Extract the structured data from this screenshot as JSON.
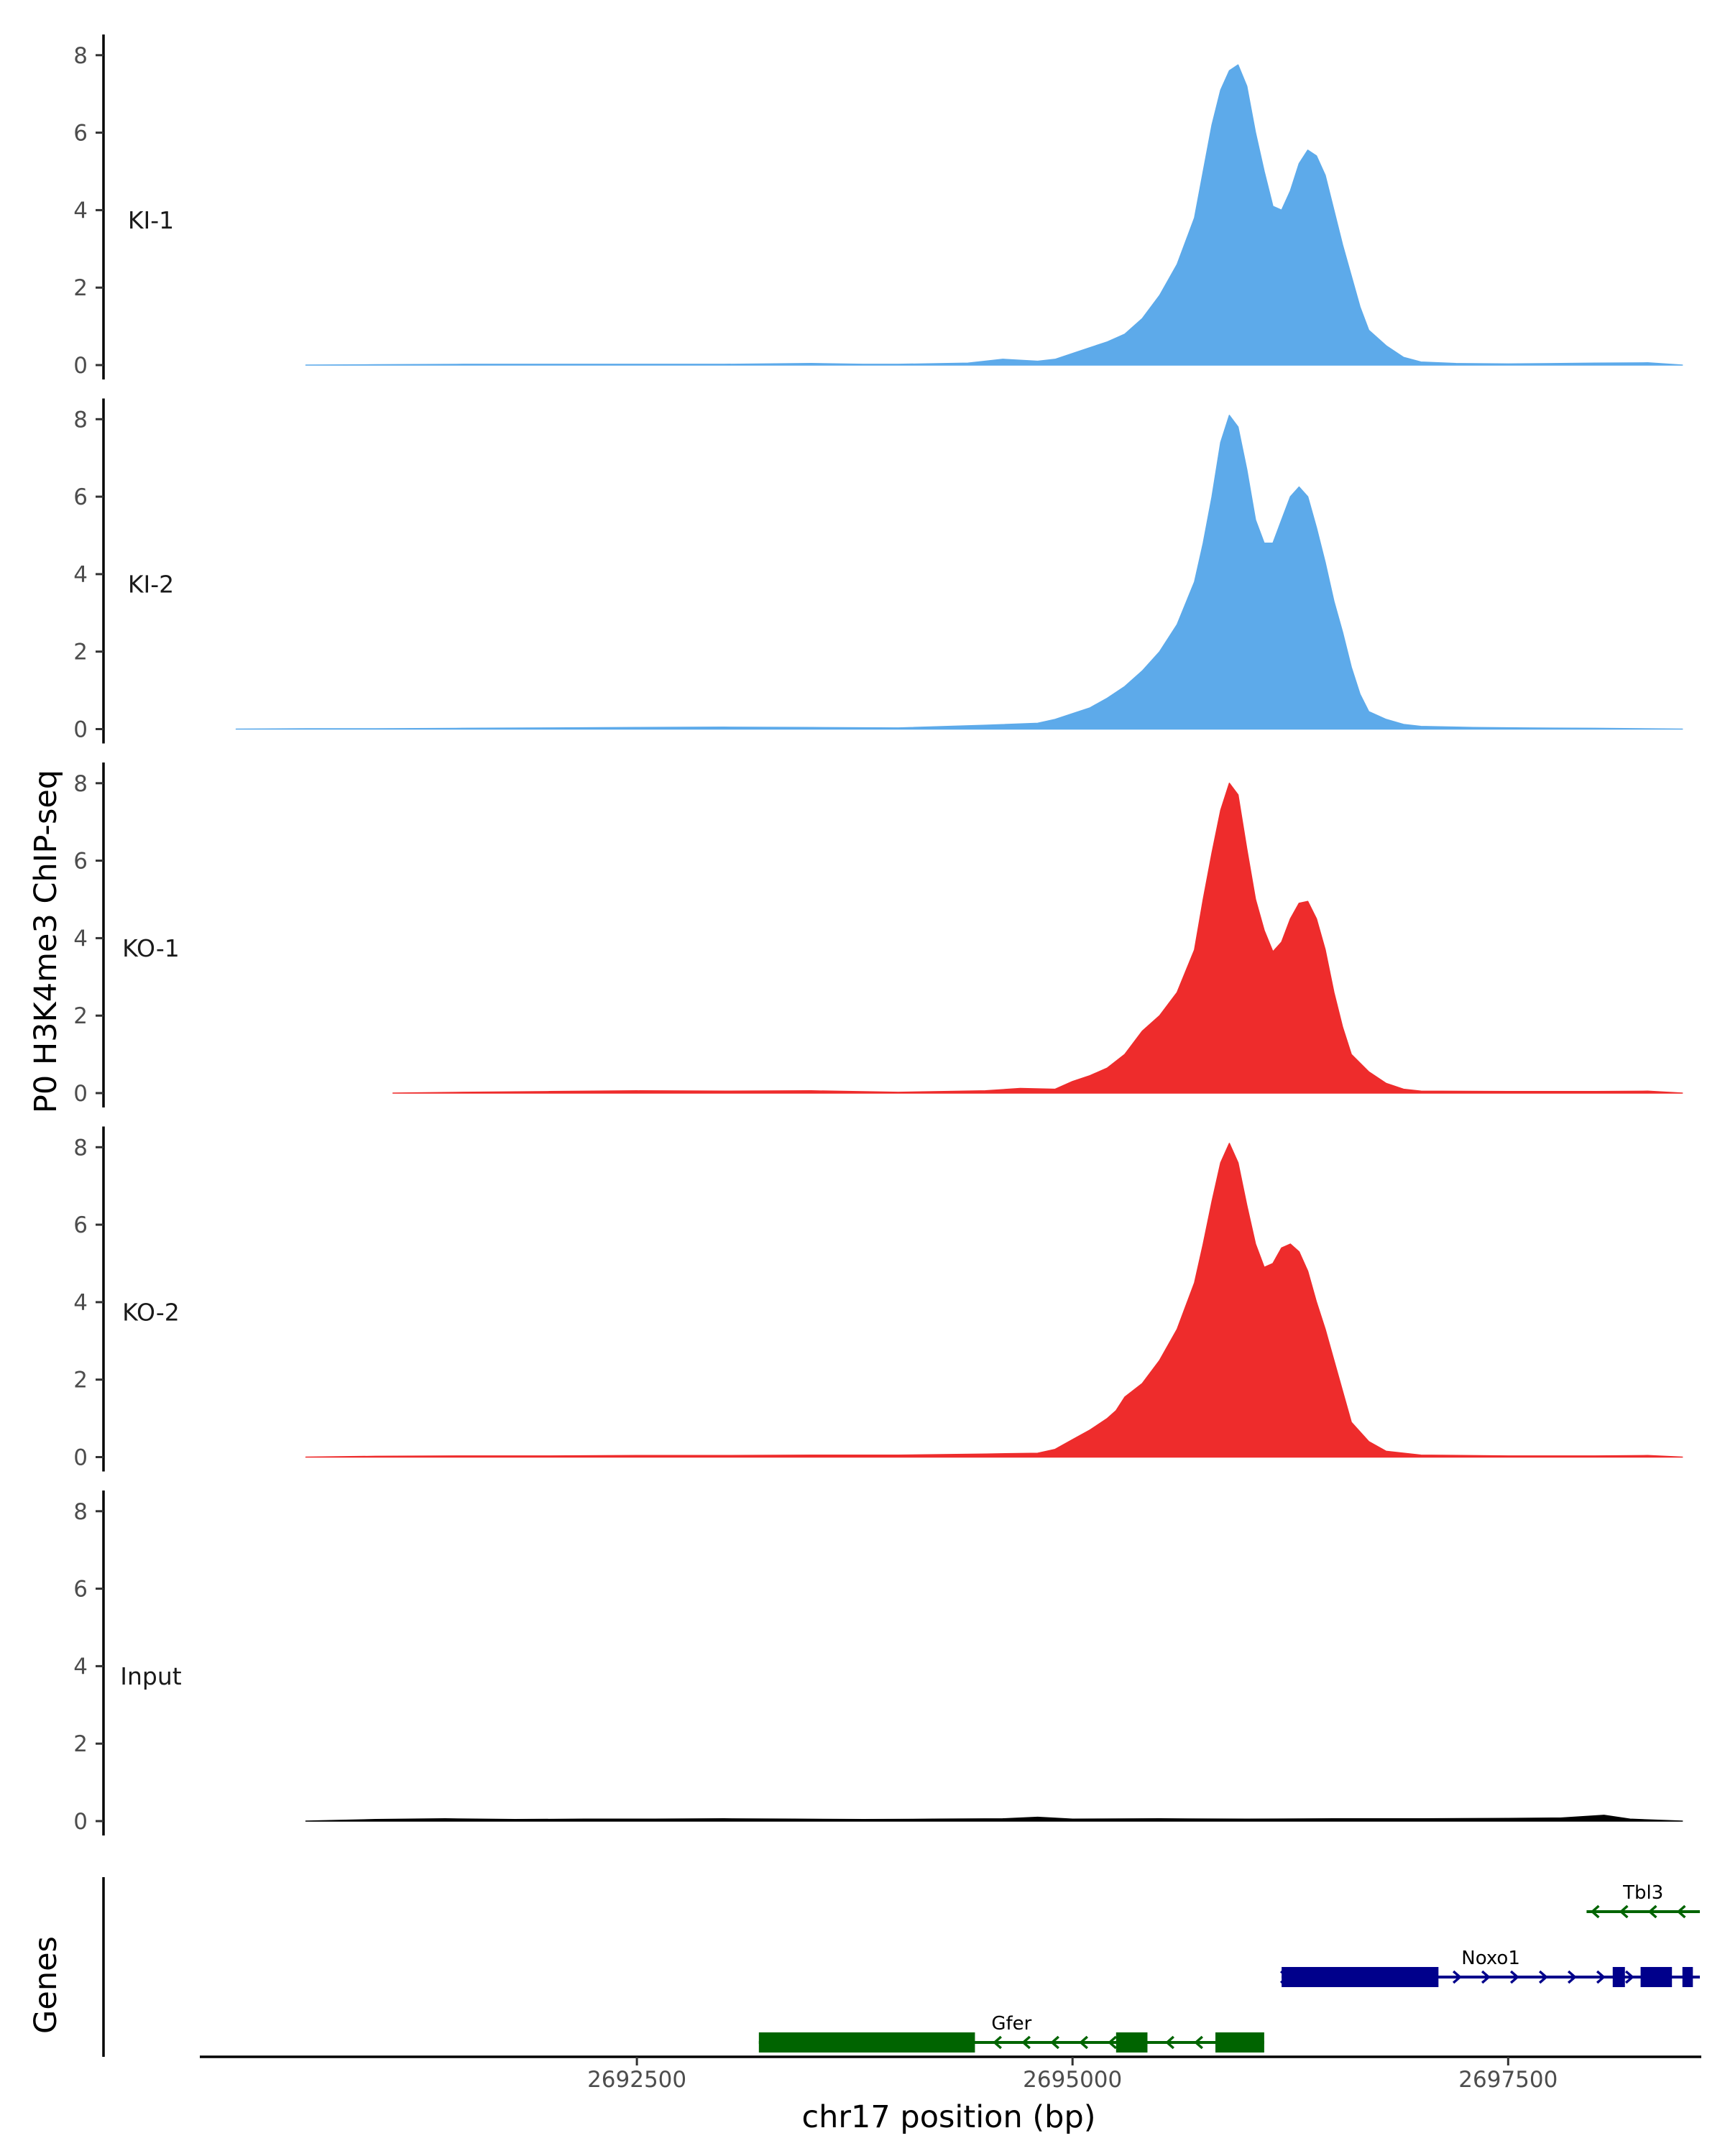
{
  "chart_data": {
    "type": "area",
    "title": "",
    "ylabel": "P0 H3K4me3 ChIP-seq",
    "xlabel": "chr17 position (bp)",
    "genes_label": "Genes",
    "ylim": [
      0,
      8.5
    ],
    "yticks": [
      0,
      2,
      4,
      6,
      8
    ],
    "xlim": [
      2690000,
      2698600
    ],
    "xticks": [
      2692500,
      2695000,
      2697500
    ],
    "xtick_labels": [
      "2692500",
      "2695000",
      "2697500"
    ],
    "coverage_x_range": [
      2690600,
      2698500
    ],
    "tracks": [
      {
        "name": "KI-1",
        "color": "#5DAAEA",
        "profile": [
          [
            2690600,
            0
          ],
          [
            2691000,
            0.01
          ],
          [
            2691500,
            0.02
          ],
          [
            2692000,
            0.02
          ],
          [
            2692500,
            0.02
          ],
          [
            2693000,
            0.02
          ],
          [
            2693500,
            0.04
          ],
          [
            2693800,
            0.02
          ],
          [
            2694000,
            0.02
          ],
          [
            2694400,
            0.05
          ],
          [
            2694600,
            0.15
          ],
          [
            2694800,
            0.1
          ],
          [
            2694900,
            0.15
          ],
          [
            2695000,
            0.3
          ],
          [
            2695100,
            0.45
          ],
          [
            2695200,
            0.6
          ],
          [
            2695300,
            0.8
          ],
          [
            2695400,
            1.2
          ],
          [
            2695500,
            1.8
          ],
          [
            2695600,
            2.6
          ],
          [
            2695700,
            3.8
          ],
          [
            2695750,
            5.0
          ],
          [
            2695800,
            6.2
          ],
          [
            2695850,
            7.1
          ],
          [
            2695900,
            7.6
          ],
          [
            2695950,
            7.75
          ],
          [
            2696000,
            7.2
          ],
          [
            2696050,
            6.0
          ],
          [
            2696100,
            5.0
          ],
          [
            2696150,
            4.1
          ],
          [
            2696200,
            4.0
          ],
          [
            2696250,
            4.5
          ],
          [
            2696300,
            5.2
          ],
          [
            2696350,
            5.55
          ],
          [
            2696400,
            5.4
          ],
          [
            2696450,
            4.9
          ],
          [
            2696500,
            4.0
          ],
          [
            2696550,
            3.1
          ],
          [
            2696600,
            2.3
          ],
          [
            2696650,
            1.5
          ],
          [
            2696700,
            0.9
          ],
          [
            2696800,
            0.5
          ],
          [
            2696900,
            0.2
          ],
          [
            2697000,
            0.08
          ],
          [
            2697200,
            0.04
          ],
          [
            2697500,
            0.03
          ],
          [
            2698000,
            0.05
          ],
          [
            2698300,
            0.06
          ],
          [
            2698500,
            0
          ]
        ]
      },
      {
        "name": "KI-2",
        "color": "#5DAAEA",
        "profile": [
          [
            2690200,
            0
          ],
          [
            2690600,
            0.01
          ],
          [
            2691000,
            0.01
          ],
          [
            2691500,
            0.02
          ],
          [
            2692000,
            0.03
          ],
          [
            2692500,
            0.04
          ],
          [
            2693000,
            0.05
          ],
          [
            2693500,
            0.04
          ],
          [
            2694000,
            0.03
          ],
          [
            2694500,
            0.1
          ],
          [
            2694800,
            0.15
          ],
          [
            2694900,
            0.25
          ],
          [
            2695000,
            0.4
          ],
          [
            2695100,
            0.55
          ],
          [
            2695200,
            0.8
          ],
          [
            2695300,
            1.1
          ],
          [
            2695400,
            1.5
          ],
          [
            2695500,
            2.0
          ],
          [
            2695600,
            2.7
          ],
          [
            2695700,
            3.8
          ],
          [
            2695750,
            4.8
          ],
          [
            2695800,
            6.0
          ],
          [
            2695850,
            7.4
          ],
          [
            2695900,
            8.1
          ],
          [
            2695950,
            7.8
          ],
          [
            2696000,
            6.7
          ],
          [
            2696050,
            5.4
          ],
          [
            2696100,
            4.8
          ],
          [
            2696150,
            4.8
          ],
          [
            2696200,
            5.4
          ],
          [
            2696250,
            6.0
          ],
          [
            2696300,
            6.25
          ],
          [
            2696350,
            6.0
          ],
          [
            2696400,
            5.2
          ],
          [
            2696450,
            4.3
          ],
          [
            2696500,
            3.3
          ],
          [
            2696550,
            2.5
          ],
          [
            2696600,
            1.6
          ],
          [
            2696650,
            0.9
          ],
          [
            2696700,
            0.45
          ],
          [
            2696800,
            0.25
          ],
          [
            2696900,
            0.12
          ],
          [
            2697000,
            0.07
          ],
          [
            2697300,
            0.04
          ],
          [
            2697600,
            0.03
          ],
          [
            2698000,
            0.02
          ],
          [
            2698500,
            0
          ]
        ]
      },
      {
        "name": "KO-1",
        "color": "#EE2C2C",
        "profile": [
          [
            2691100,
            0
          ],
          [
            2691500,
            0.02
          ],
          [
            2692000,
            0.04
          ],
          [
            2692500,
            0.06
          ],
          [
            2693000,
            0.05
          ],
          [
            2693500,
            0.06
          ],
          [
            2694000,
            0.02
          ],
          [
            2694500,
            0.06
          ],
          [
            2694700,
            0.12
          ],
          [
            2694900,
            0.1
          ],
          [
            2695000,
            0.3
          ],
          [
            2695100,
            0.45
          ],
          [
            2695200,
            0.65
          ],
          [
            2695300,
            1.0
          ],
          [
            2695400,
            1.6
          ],
          [
            2695500,
            2.0
          ],
          [
            2695550,
            2.3
          ],
          [
            2695600,
            2.6
          ],
          [
            2695700,
            3.7
          ],
          [
            2695750,
            5.0
          ],
          [
            2695800,
            6.2
          ],
          [
            2695850,
            7.3
          ],
          [
            2695900,
            8.0
          ],
          [
            2695950,
            7.7
          ],
          [
            2696000,
            6.3
          ],
          [
            2696050,
            5.0
          ],
          [
            2696100,
            4.2
          ],
          [
            2696150,
            3.65
          ],
          [
            2696200,
            3.9
          ],
          [
            2696250,
            4.5
          ],
          [
            2696300,
            4.9
          ],
          [
            2696350,
            4.95
          ],
          [
            2696400,
            4.5
          ],
          [
            2696450,
            3.7
          ],
          [
            2696500,
            2.6
          ],
          [
            2696550,
            1.7
          ],
          [
            2696600,
            1.0
          ],
          [
            2696700,
            0.55
          ],
          [
            2696800,
            0.25
          ],
          [
            2696900,
            0.1
          ],
          [
            2697000,
            0.05
          ],
          [
            2697500,
            0.04
          ],
          [
            2698000,
            0.04
          ],
          [
            2698300,
            0.05
          ],
          [
            2698500,
            0
          ]
        ]
      },
      {
        "name": "KO-2",
        "color": "#EE2C2C",
        "profile": [
          [
            2690600,
            0
          ],
          [
            2691000,
            0.02
          ],
          [
            2691500,
            0.03
          ],
          [
            2692000,
            0.03
          ],
          [
            2692500,
            0.04
          ],
          [
            2693000,
            0.04
          ],
          [
            2693500,
            0.05
          ],
          [
            2694000,
            0.05
          ],
          [
            2694500,
            0.08
          ],
          [
            2694800,
            0.1
          ],
          [
            2694900,
            0.2
          ],
          [
            2695000,
            0.45
          ],
          [
            2695100,
            0.7
          ],
          [
            2695200,
            1.0
          ],
          [
            2695250,
            1.2
          ],
          [
            2695300,
            1.55
          ],
          [
            2695400,
            1.9
          ],
          [
            2695500,
            2.5
          ],
          [
            2695600,
            3.3
          ],
          [
            2695700,
            4.5
          ],
          [
            2695750,
            5.5
          ],
          [
            2695800,
            6.6
          ],
          [
            2695850,
            7.6
          ],
          [
            2695900,
            8.1
          ],
          [
            2695950,
            7.6
          ],
          [
            2696000,
            6.5
          ],
          [
            2696050,
            5.5
          ],
          [
            2696100,
            4.9
          ],
          [
            2696150,
            5.0
          ],
          [
            2696200,
            5.4
          ],
          [
            2696250,
            5.5
          ],
          [
            2696300,
            5.3
          ],
          [
            2696350,
            4.8
          ],
          [
            2696400,
            4.0
          ],
          [
            2696450,
            3.3
          ],
          [
            2696500,
            2.5
          ],
          [
            2696550,
            1.7
          ],
          [
            2696600,
            0.9
          ],
          [
            2696700,
            0.4
          ],
          [
            2696800,
            0.15
          ],
          [
            2697000,
            0.05
          ],
          [
            2697500,
            0.03
          ],
          [
            2698000,
            0.03
          ],
          [
            2698300,
            0.04
          ],
          [
            2698500,
            0
          ]
        ]
      },
      {
        "name": "Input",
        "color": "#000000",
        "profile": [
          [
            2690600,
            0
          ],
          [
            2691000,
            0.04
          ],
          [
            2691400,
            0.06
          ],
          [
            2691800,
            0.04
          ],
          [
            2692200,
            0.05
          ],
          [
            2692600,
            0.05
          ],
          [
            2693000,
            0.06
          ],
          [
            2693400,
            0.05
          ],
          [
            2693800,
            0.04
          ],
          [
            2694200,
            0.05
          ],
          [
            2694600,
            0.06
          ],
          [
            2694800,
            0.1
          ],
          [
            2695000,
            0.05
          ],
          [
            2695500,
            0.06
          ],
          [
            2696000,
            0.05
          ],
          [
            2696500,
            0.06
          ],
          [
            2697000,
            0.06
          ],
          [
            2697500,
            0.07
          ],
          [
            2697800,
            0.08
          ],
          [
            2698050,
            0.15
          ],
          [
            2698200,
            0.05
          ],
          [
            2698500,
            0
          ]
        ]
      }
    ],
    "genes": [
      {
        "name": "Gfer",
        "strand": "-",
        "color": "#006400",
        "row": 1,
        "start": 2693200,
        "end": 2696100,
        "exons": [
          [
            2693200,
            2694440
          ],
          [
            2695250,
            2695430
          ],
          [
            2695820,
            2696100
          ]
        ]
      },
      {
        "name": "Noxo1",
        "strand": "+",
        "color": "#00008B",
        "row": 2,
        "start": 2696200,
        "end": 2698600,
        "exons": [
          [
            2696200,
            2697100
          ],
          [
            2698100,
            2698170
          ],
          [
            2698260,
            2698440
          ],
          [
            2698500,
            2698560
          ]
        ]
      },
      {
        "name": "Tbl3",
        "strand": "-",
        "color": "#006400",
        "row": 3,
        "start": 2697950,
        "end": 2698600,
        "exons": []
      }
    ]
  }
}
